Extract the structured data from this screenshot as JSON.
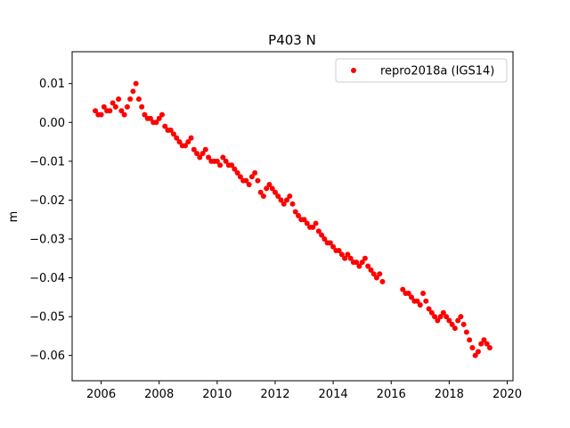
{
  "chart_data": {
    "type": "scatter",
    "title": "P403 N",
    "xlabel": "",
    "ylabel": "m",
    "xlim": [
      2005.0,
      2020.2
    ],
    "ylim": [
      -0.0665,
      0.0182
    ],
    "x_ticks": [
      2006,
      2008,
      2010,
      2012,
      2014,
      2016,
      2018,
      2020
    ],
    "x_tick_labels": [
      "2006",
      "2008",
      "2010",
      "2012",
      "2014",
      "2016",
      "2018",
      "2020"
    ],
    "y_ticks": [
      0.01,
      0.0,
      -0.01,
      -0.02,
      -0.03,
      -0.04,
      -0.05,
      -0.06
    ],
    "y_tick_labels": [
      "0.01",
      "0.00",
      "−0.01",
      "−0.02",
      "−0.03",
      "−0.04",
      "−0.05",
      "−0.06"
    ],
    "grid": false,
    "legend": {
      "position": "top-right"
    },
    "series": [
      {
        "name": "repro2018a (IGS14)",
        "color": "#ff0000",
        "marker": "circle",
        "x": [
          2005.8,
          2005.9,
          2006.0,
          2006.1,
          2006.2,
          2006.3,
          2006.4,
          2006.5,
          2006.6,
          2006.7,
          2006.8,
          2006.9,
          2007.0,
          2007.1,
          2007.2,
          2007.3,
          2007.4,
          2007.5,
          2007.6,
          2007.7,
          2007.8,
          2007.9,
          2008.0,
          2008.1,
          2008.2,
          2008.3,
          2008.4,
          2008.5,
          2008.6,
          2008.7,
          2008.8,
          2008.9,
          2009.0,
          2009.1,
          2009.2,
          2009.3,
          2009.4,
          2009.5,
          2009.6,
          2009.7,
          2009.8,
          2009.9,
          2010.0,
          2010.1,
          2010.2,
          2010.3,
          2010.4,
          2010.5,
          2010.6,
          2010.7,
          2010.8,
          2010.9,
          2011.0,
          2011.1,
          2011.2,
          2011.3,
          2011.4,
          2011.5,
          2011.6,
          2011.7,
          2011.8,
          2011.9,
          2012.0,
          2012.1,
          2012.2,
          2012.3,
          2012.4,
          2012.5,
          2012.6,
          2012.7,
          2012.8,
          2012.9,
          2013.0,
          2013.1,
          2013.2,
          2013.3,
          2013.4,
          2013.5,
          2013.6,
          2013.7,
          2013.8,
          2013.9,
          2014.0,
          2014.1,
          2014.2,
          2014.3,
          2014.4,
          2014.5,
          2014.6,
          2014.7,
          2014.8,
          2014.9,
          2015.0,
          2015.1,
          2015.2,
          2015.3,
          2015.4,
          2015.5,
          2015.6,
          2015.7,
          2016.4,
          2016.5,
          2016.6,
          2016.7,
          2016.8,
          2016.9,
          2017.0,
          2017.1,
          2017.2,
          2017.3,
          2017.4,
          2017.5,
          2017.6,
          2017.7,
          2017.8,
          2017.9,
          2018.0,
          2018.1,
          2018.2,
          2018.3,
          2018.4,
          2018.5,
          2018.6,
          2018.7,
          2018.8,
          2018.9,
          2019.0,
          2019.1,
          2019.2,
          2019.3,
          2019.4
        ],
        "y": [
          0.003,
          0.002,
          0.002,
          0.004,
          0.003,
          0.003,
          0.005,
          0.004,
          0.006,
          0.003,
          0.002,
          0.004,
          0.006,
          0.008,
          0.01,
          0.006,
          0.004,
          0.002,
          0.001,
          0.001,
          0.0,
          0.0,
          0.001,
          0.002,
          -0.001,
          -0.002,
          -0.002,
          -0.003,
          -0.004,
          -0.005,
          -0.006,
          -0.006,
          -0.005,
          -0.004,
          -0.007,
          -0.008,
          -0.009,
          -0.008,
          -0.007,
          -0.009,
          -0.01,
          -0.01,
          -0.01,
          -0.011,
          -0.009,
          -0.01,
          -0.011,
          -0.011,
          -0.012,
          -0.013,
          -0.014,
          -0.015,
          -0.015,
          -0.016,
          -0.014,
          -0.013,
          -0.015,
          -0.018,
          -0.019,
          -0.017,
          -0.016,
          -0.017,
          -0.018,
          -0.019,
          -0.02,
          -0.021,
          -0.02,
          -0.019,
          -0.021,
          -0.023,
          -0.024,
          -0.025,
          -0.025,
          -0.026,
          -0.027,
          -0.027,
          -0.026,
          -0.028,
          -0.029,
          -0.03,
          -0.031,
          -0.031,
          -0.032,
          -0.033,
          -0.033,
          -0.034,
          -0.035,
          -0.034,
          -0.035,
          -0.036,
          -0.036,
          -0.037,
          -0.036,
          -0.035,
          -0.037,
          -0.038,
          -0.039,
          -0.04,
          -0.039,
          -0.041,
          -0.043,
          -0.044,
          -0.044,
          -0.045,
          -0.046,
          -0.046,
          -0.047,
          -0.044,
          -0.046,
          -0.048,
          -0.049,
          -0.05,
          -0.051,
          -0.05,
          -0.049,
          -0.05,
          -0.051,
          -0.052,
          -0.053,
          -0.051,
          -0.05,
          -0.052,
          -0.054,
          -0.056,
          -0.058,
          -0.06,
          -0.059,
          -0.057,
          -0.056,
          -0.057,
          -0.058
        ]
      }
    ]
  }
}
